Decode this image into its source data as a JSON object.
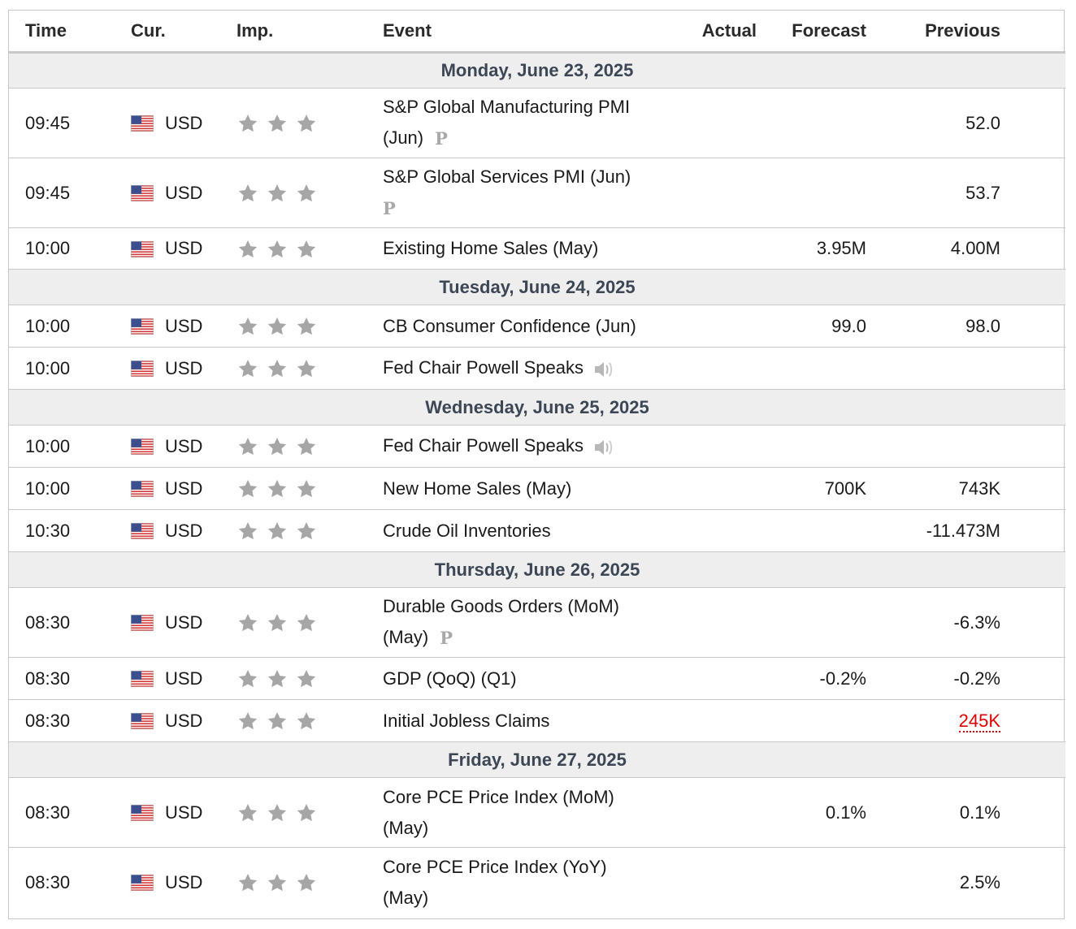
{
  "headers": {
    "time": "Time",
    "cur": "Cur.",
    "imp": "Imp.",
    "event": "Event",
    "actual": "Actual",
    "forecast": "Forecast",
    "previous": "Previous"
  },
  "colors": {
    "border": "#c8c8c8",
    "day_bg": "#eeeeee",
    "day_text": "#3c4655",
    "star": "#a6a6a6",
    "negative_highlight": "#e00000"
  },
  "days": [
    {
      "label": "Monday, June 23, 2025"
    },
    {
      "label": "Tuesday, June 24, 2025"
    },
    {
      "label": "Wednesday, June 25, 2025"
    },
    {
      "label": "Thursday, June 26, 2025"
    },
    {
      "label": "Friday, June 27, 2025"
    }
  ],
  "events": [
    {
      "time": "09:45",
      "currency": "USD",
      "flag_icon": "us-flag-icon",
      "importance": 3,
      "event_line1": "S&P Global Manufacturing PMI",
      "event_line2": "(Jun)",
      "preliminary_icon": "P",
      "actual": "",
      "forecast": "",
      "previous": "52.0"
    },
    {
      "time": "09:45",
      "currency": "USD",
      "flag_icon": "us-flag-icon",
      "importance": 3,
      "event_line1": "S&P Global Services PMI (Jun)",
      "event_line2": "",
      "preliminary_icon": "P",
      "actual": "",
      "forecast": "",
      "previous": "53.7"
    },
    {
      "time": "10:00",
      "currency": "USD",
      "flag_icon": "us-flag-icon",
      "importance": 3,
      "event": "Existing Home Sales (May)",
      "actual": "",
      "forecast": "3.95M",
      "previous": "4.00M"
    },
    {
      "time": "10:00",
      "currency": "USD",
      "flag_icon": "us-flag-icon",
      "importance": 3,
      "event": "CB Consumer Confidence (Jun)",
      "actual": "",
      "forecast": "99.0",
      "previous": "98.0"
    },
    {
      "time": "10:00",
      "currency": "USD",
      "flag_icon": "us-flag-icon",
      "importance": 3,
      "event": "Fed Chair Powell Speaks",
      "speech_icon": "speaker-icon",
      "actual": "",
      "forecast": "",
      "previous": ""
    },
    {
      "time": "10:00",
      "currency": "USD",
      "flag_icon": "us-flag-icon",
      "importance": 3,
      "event": "Fed Chair Powell Speaks",
      "speech_icon": "speaker-icon",
      "actual": "",
      "forecast": "",
      "previous": ""
    },
    {
      "time": "10:00",
      "currency": "USD",
      "flag_icon": "us-flag-icon",
      "importance": 3,
      "event": "New Home Sales (May)",
      "actual": "",
      "forecast": "700K",
      "previous": "743K"
    },
    {
      "time": "10:30",
      "currency": "USD",
      "flag_icon": "us-flag-icon",
      "importance": 3,
      "event": "Crude Oil Inventories",
      "actual": "",
      "forecast": "",
      "previous": "-11.473M"
    },
    {
      "time": "08:30",
      "currency": "USD",
      "flag_icon": "us-flag-icon",
      "importance": 3,
      "event_line1": "Durable Goods Orders (MoM)",
      "event_line2": "(May)",
      "preliminary_icon": "P",
      "actual": "",
      "forecast": "",
      "previous": "-6.3%"
    },
    {
      "time": "08:30",
      "currency": "USD",
      "flag_icon": "us-flag-icon",
      "importance": 3,
      "event": "GDP (QoQ) (Q1)",
      "actual": "",
      "forecast": "-0.2%",
      "previous": "-0.2%"
    },
    {
      "time": "08:30",
      "currency": "USD",
      "flag_icon": "us-flag-icon",
      "importance": 3,
      "event": "Initial Jobless Claims",
      "actual": "",
      "forecast": "",
      "previous": "245K"
    },
    {
      "time": "08:30",
      "currency": "USD",
      "flag_icon": "us-flag-icon",
      "importance": 3,
      "event_line1": "Core PCE Price Index (MoM)",
      "event_line2": "(May)",
      "actual": "",
      "forecast": "0.1%",
      "previous": "0.1%"
    },
    {
      "time": "08:30",
      "currency": "USD",
      "flag_icon": "us-flag-icon",
      "importance": 3,
      "event_line1": "Core PCE Price Index (YoY)",
      "event_line2": "(May)",
      "actual": "",
      "forecast": "",
      "previous": "2.5%"
    }
  ]
}
